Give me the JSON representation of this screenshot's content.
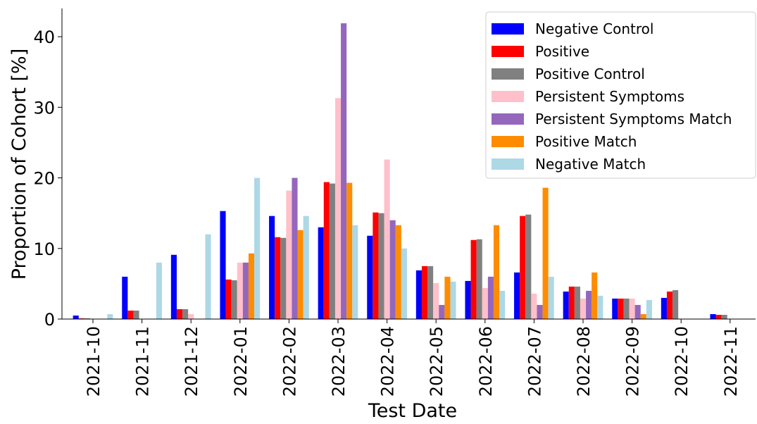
{
  "chart_data": {
    "type": "bar",
    "x_label": "Test Date",
    "y_label": "Proportion of Cohort [%]",
    "categories": [
      "2021-10",
      "2021-11",
      "2021-12",
      "2022-01",
      "2022-02",
      "2022-03",
      "2022-04",
      "2022-05",
      "2022-06",
      "2022-07",
      "2022-08",
      "2022-09",
      "2022-10",
      "2022-11"
    ],
    "series": [
      {
        "name": "Negative Control",
        "color": "#0000ff",
        "values": [
          0.5,
          6.0,
          9.1,
          15.3,
          14.6,
          13.0,
          11.8,
          6.9,
          5.4,
          6.6,
          3.9,
          2.9,
          3.0,
          0.7
        ]
      },
      {
        "name": "Positive",
        "color": "#ff0000",
        "values": [
          0.1,
          1.2,
          1.4,
          5.6,
          11.6,
          19.4,
          15.1,
          7.5,
          11.2,
          14.6,
          4.6,
          2.9,
          3.9,
          0.6
        ]
      },
      {
        "name": "Positive Control",
        "color": "#808080",
        "values": [
          0.1,
          1.2,
          1.4,
          5.5,
          11.5,
          19.2,
          15.0,
          7.5,
          11.3,
          14.8,
          4.6,
          2.9,
          4.1,
          0.6
        ]
      },
      {
        "name": "Persistent Symptoms",
        "color": "#ffc0cb",
        "values": [
          0,
          0,
          0.7,
          8.0,
          18.2,
          31.3,
          22.6,
          5.1,
          4.4,
          3.6,
          2.9,
          2.9,
          0,
          0
        ]
      },
      {
        "name": "Persistent Symptoms Match",
        "color": "#9467bd",
        "values": [
          0,
          0,
          0,
          8.0,
          20.0,
          41.9,
          14.0,
          2.0,
          6.0,
          2.0,
          4.0,
          2.0,
          0,
          0
        ]
      },
      {
        "name": "Positive Match",
        "color": "#ff8c00",
        "values": [
          0,
          0,
          0,
          9.3,
          12.6,
          19.3,
          13.3,
          6.0,
          13.3,
          18.6,
          6.6,
          0.7,
          0,
          0
        ]
      },
      {
        "name": "Negative Match",
        "color": "#add8e6",
        "values": [
          0.7,
          8.0,
          12.0,
          20.0,
          14.6,
          13.3,
          10.0,
          5.3,
          4.0,
          6.0,
          3.3,
          2.7,
          0,
          0
        ]
      }
    ],
    "ylim": [
      0,
      44
    ],
    "yticks": [
      0,
      10,
      20,
      30,
      40
    ],
    "legend": "upper right"
  }
}
